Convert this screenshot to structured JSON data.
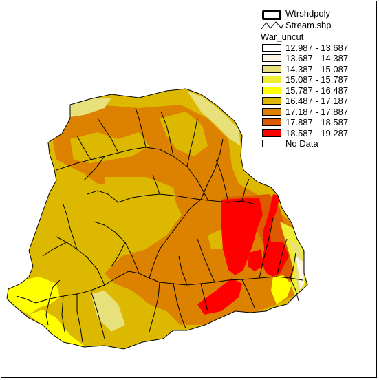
{
  "legend": {
    "watershed_label": "Wtrshdpoly",
    "stream_label": "Stream.shp",
    "raster_title": "War_uncut",
    "classes": [
      {
        "label": "12.987 - 13.687",
        "color": "#ffffff"
      },
      {
        "label": "13.687 - 14.387",
        "color": "#fbf6e6"
      },
      {
        "label": "14.387 - 15.087",
        "color": "#e8e07a"
      },
      {
        "label": "15.087 - 15.787",
        "color": "#eeee33"
      },
      {
        "label": "15.787 - 16.487",
        "color": "#ffff00"
      },
      {
        "label": "16.487 - 17.187",
        "color": "#dcb900"
      },
      {
        "label": "17.187 - 17.887",
        "color": "#dc8200"
      },
      {
        "label": "17.887 - 18.587",
        "color": "#dc5a00"
      },
      {
        "label": "18.587 - 19.287",
        "color": "#ff0000"
      },
      {
        "label": "No Data",
        "color": "#ffffff"
      }
    ]
  },
  "colors": {
    "stream": "#000000",
    "boundary": "#000000"
  }
}
